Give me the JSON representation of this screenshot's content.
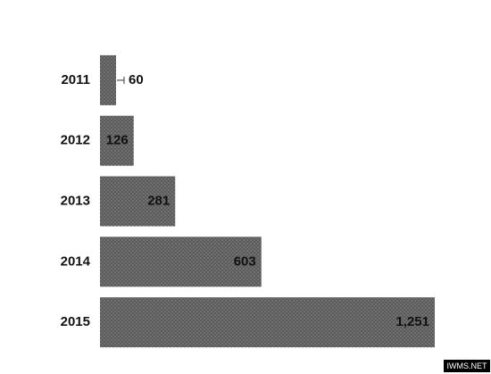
{
  "chart_data": {
    "type": "bar",
    "orientation": "horizontal",
    "categories": [
      "2011",
      "2012",
      "2013",
      "2014",
      "2015"
    ],
    "values": [
      60,
      126,
      281,
      603,
      1251
    ],
    "value_labels": [
      "60",
      "126",
      "281",
      "603",
      "1,251"
    ],
    "color": "#5a5a5a"
  },
  "watermark": "IWMS.NET"
}
